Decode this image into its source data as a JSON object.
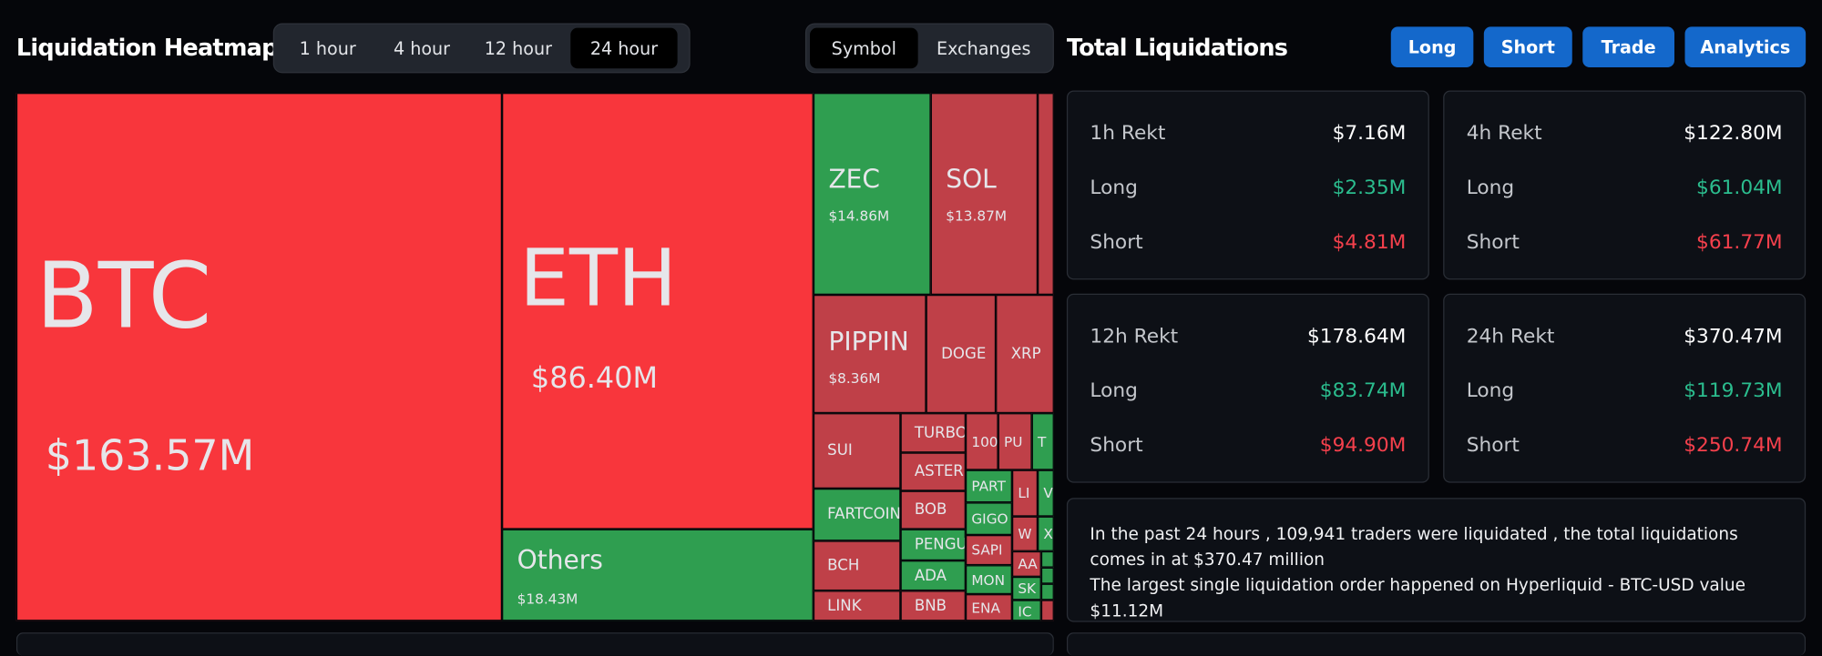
{
  "heatmap": {
    "title": "Liquidation Heatmap",
    "time_tabs": [
      {
        "label": "1 hour",
        "active": false
      },
      {
        "label": "4 hour",
        "active": false
      },
      {
        "label": "12 hour",
        "active": false
      },
      {
        "label": "24 hour",
        "active": true
      }
    ],
    "view_tabs": [
      {
        "label": "Symbol",
        "active": true
      },
      {
        "label": "Exchanges",
        "active": false
      }
    ],
    "colors": {
      "short_large": "#f8363c",
      "short": "#bf4048",
      "long": "#2f9e50"
    },
    "cells": [
      {
        "symbol": "BTC",
        "value": "$163.57M",
        "color": "short_large"
      },
      {
        "symbol": "ETH",
        "value": "$86.40M",
        "color": "short_large"
      },
      {
        "symbol": "Others",
        "value": "$18.43M",
        "color": "long"
      },
      {
        "symbol": "ZEC",
        "value": "$14.86M",
        "color": "long"
      },
      {
        "symbol": "SOL",
        "value": "$13.87M",
        "color": "short"
      },
      {
        "symbol": "",
        "value": "",
        "color": "short"
      },
      {
        "symbol": "PIPPIN",
        "value": "$8.36M",
        "color": "short"
      },
      {
        "symbol": "DOGE",
        "value": "",
        "color": "short"
      },
      {
        "symbol": "XRP",
        "value": "",
        "color": "short"
      },
      {
        "symbol": "SUI",
        "value": "",
        "color": "short"
      },
      {
        "symbol": "FARTCOIN",
        "value": "",
        "color": "long"
      },
      {
        "symbol": "BCH",
        "value": "",
        "color": "short"
      },
      {
        "symbol": "LINK",
        "value": "",
        "color": "short"
      },
      {
        "symbol": "TURBO",
        "value": "",
        "color": "short"
      },
      {
        "symbol": "ASTER",
        "value": "",
        "color": "short"
      },
      {
        "symbol": "BOB",
        "value": "",
        "color": "short"
      },
      {
        "symbol": "PENGU",
        "value": "",
        "color": "long"
      },
      {
        "symbol": "ADA",
        "value": "",
        "color": "long"
      },
      {
        "symbol": "BNB",
        "value": "",
        "color": "short"
      },
      {
        "symbol": "100",
        "value": "",
        "color": "short"
      },
      {
        "symbol": "PU",
        "value": "",
        "color": "short"
      },
      {
        "symbol": "T",
        "value": "",
        "color": "long"
      },
      {
        "symbol": "PART",
        "value": "",
        "color": "long"
      },
      {
        "symbol": "GIGO",
        "value": "",
        "color": "long"
      },
      {
        "symbol": "SAPI",
        "value": "",
        "color": "short"
      },
      {
        "symbol": "MON",
        "value": "",
        "color": "long"
      },
      {
        "symbol": "ENA",
        "value": "",
        "color": "short"
      },
      {
        "symbol": "LI",
        "value": "",
        "color": "short"
      },
      {
        "symbol": "V",
        "value": "",
        "color": "long"
      },
      {
        "symbol": "W",
        "value": "",
        "color": "short"
      },
      {
        "symbol": "X",
        "value": "",
        "color": "long"
      },
      {
        "symbol": "AA",
        "value": "",
        "color": "short"
      },
      {
        "symbol": "",
        "value": "",
        "color": "long"
      },
      {
        "symbol": "SK",
        "value": "",
        "color": "long"
      },
      {
        "symbol": "",
        "value": "",
        "color": "long"
      },
      {
        "symbol": "IC",
        "value": "",
        "color": "long"
      },
      {
        "symbol": "",
        "value": "",
        "color": "long"
      },
      {
        "symbol": "",
        "value": "",
        "color": "short"
      }
    ]
  },
  "totals": {
    "title": "Total Liquidations",
    "buttons": [
      "Long",
      "Short",
      "Trade",
      "Analytics"
    ],
    "cards": [
      {
        "label": "1h Rekt",
        "total": "$7.16M",
        "long_label": "Long",
        "long": "$2.35M",
        "short_label": "Short",
        "short": "$4.81M"
      },
      {
        "label": "4h Rekt",
        "total": "$122.80M",
        "long_label": "Long",
        "long": "$61.04M",
        "short_label": "Short",
        "short": "$61.77M"
      },
      {
        "label": "12h Rekt",
        "total": "$178.64M",
        "long_label": "Long",
        "long": "$83.74M",
        "short_label": "Short",
        "short": "$94.90M"
      },
      {
        "label": "24h Rekt",
        "total": "$370.47M",
        "long_label": "Long",
        "long": "$119.73M",
        "short_label": "Short",
        "short": "$250.74M"
      }
    ],
    "summary_line1": "In the past 24 hours , 109,941 traders were liquidated , the total liquidations comes in at $370.47 million",
    "summary_line2": "The largest single liquidation order happened on Hyperliquid - BTC-USD value $11.12M"
  }
}
